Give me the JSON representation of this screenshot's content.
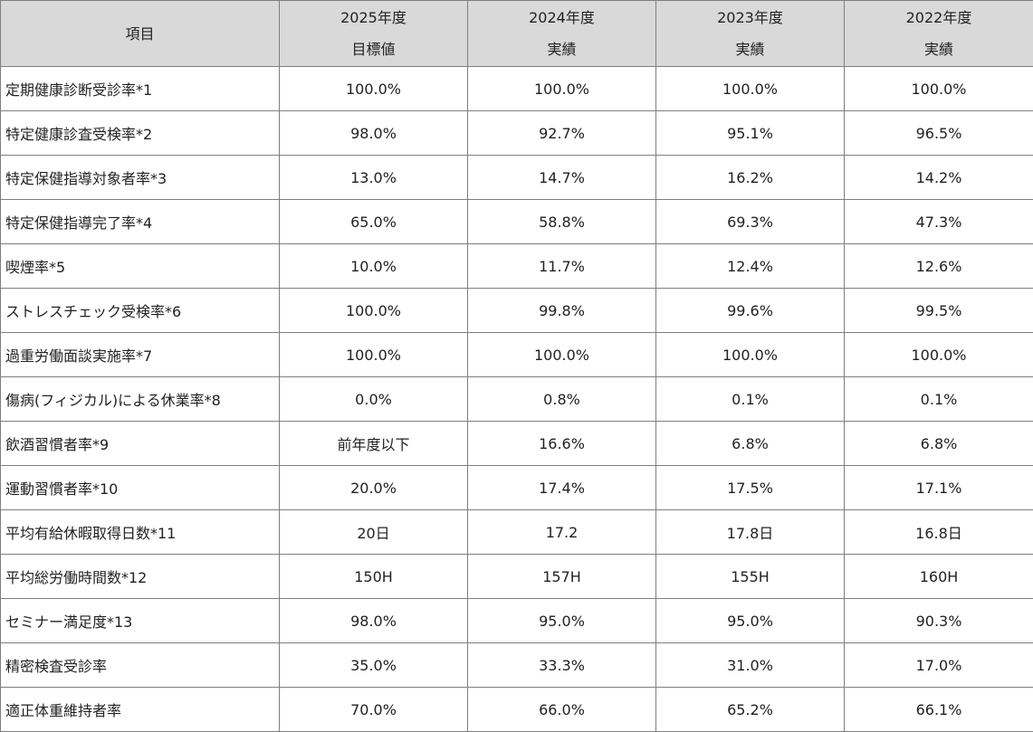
{
  "header": {
    "item": "項目",
    "columns": [
      {
        "year": "2025年度",
        "kind": "目標値"
      },
      {
        "year": "2024年度",
        "kind": "実績"
      },
      {
        "year": "2023年度",
        "kind": "実績"
      },
      {
        "year": "2022年度",
        "kind": "実績"
      }
    ]
  },
  "rows": [
    {
      "item": "定期健康診断受診率*1",
      "values": [
        "100.0%",
        "100.0%",
        "100.0%",
        "100.0%"
      ]
    },
    {
      "item": "特定健康診査受検率*2",
      "values": [
        "98.0%",
        "92.7%",
        "95.1%",
        "96.5%"
      ]
    },
    {
      "item": "特定保健指導対象者率*3",
      "values": [
        "13.0%",
        "14.7%",
        "16.2%",
        "14.2%"
      ]
    },
    {
      "item": "特定保健指導完了率*4",
      "values": [
        "65.0%",
        "58.8%",
        "69.3%",
        "47.3%"
      ]
    },
    {
      "item": "喫煙率*5",
      "values": [
        "10.0%",
        "11.7%",
        "12.4%",
        "12.6%"
      ]
    },
    {
      "item": "ストレスチェック受検率*6",
      "values": [
        "100.0%",
        "99.8%",
        "99.6%",
        "99.5%"
      ]
    },
    {
      "item": "過重労働面談実施率*7",
      "values": [
        "100.0%",
        "100.0%",
        "100.0%",
        "100.0%"
      ]
    },
    {
      "item": "傷病(フィジカル)による休業率*8",
      "values": [
        "0.0%",
        "0.8%",
        "0.1%",
        "0.1%"
      ]
    },
    {
      "item": "飲酒習慣者率*9",
      "values": [
        "前年度以下",
        "16.6%",
        "6.8%",
        "6.8%"
      ]
    },
    {
      "item": "運動習慣者率*10",
      "values": [
        "20.0%",
        "17.4%",
        "17.5%",
        "17.1%"
      ]
    },
    {
      "item": "平均有給休暇取得日数*11",
      "values": [
        "20日",
        "17.2",
        "17.8日",
        "16.8日"
      ]
    },
    {
      "item": "平均総労働時間数*12",
      "values": [
        "150H",
        "157H",
        "155H",
        "160H"
      ]
    },
    {
      "item": "セミナー満足度*13",
      "values": [
        "98.0%",
        "95.0%",
        "95.0%",
        "90.3%"
      ]
    },
    {
      "item": "精密検査受診率",
      "values": [
        "35.0%",
        "33.3%",
        "31.0%",
        "17.0%"
      ]
    },
    {
      "item": "適正体重維持者率",
      "values": [
        "70.0%",
        "66.0%",
        "65.2%",
        "66.1%"
      ]
    }
  ]
}
